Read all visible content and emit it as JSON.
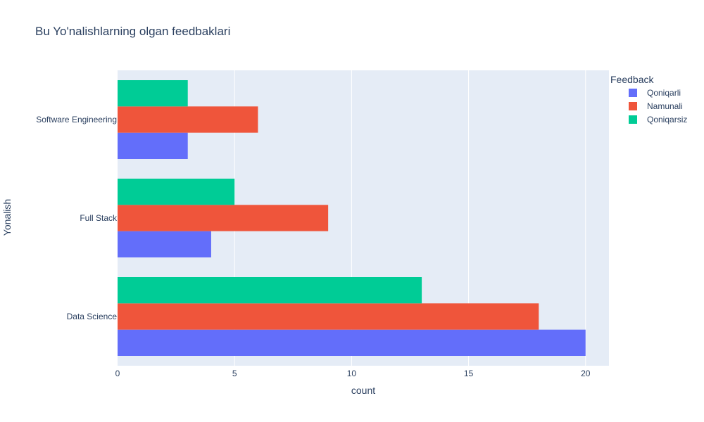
{
  "chart_data": {
    "type": "bar",
    "orientation": "horizontal",
    "barmode": "group",
    "title": "Bu Yo'nalishlarning olgan feedbaklari",
    "xlabel": "count",
    "ylabel": "Yonalish",
    "categories": [
      "Data Science",
      "Full Stack",
      "Software Engineering"
    ],
    "series": [
      {
        "name": "Qoniqarli",
        "color": "#636efa",
        "values": [
          20,
          4,
          3
        ]
      },
      {
        "name": "Namunali",
        "color": "#ef553b",
        "values": [
          18,
          9,
          6
        ]
      },
      {
        "name": "Qoniqarsiz",
        "color": "#00cc96",
        "values": [
          13,
          5,
          3
        ]
      }
    ],
    "xlim": [
      0,
      21
    ],
    "xticks": [
      0,
      5,
      10,
      15,
      20
    ],
    "grid": true,
    "legend": {
      "title": "Feedback",
      "position": "right"
    },
    "colors": {
      "plot_background": "#e5ecf6",
      "grid": "#ffffff",
      "text": "#2a3f5f"
    }
  }
}
